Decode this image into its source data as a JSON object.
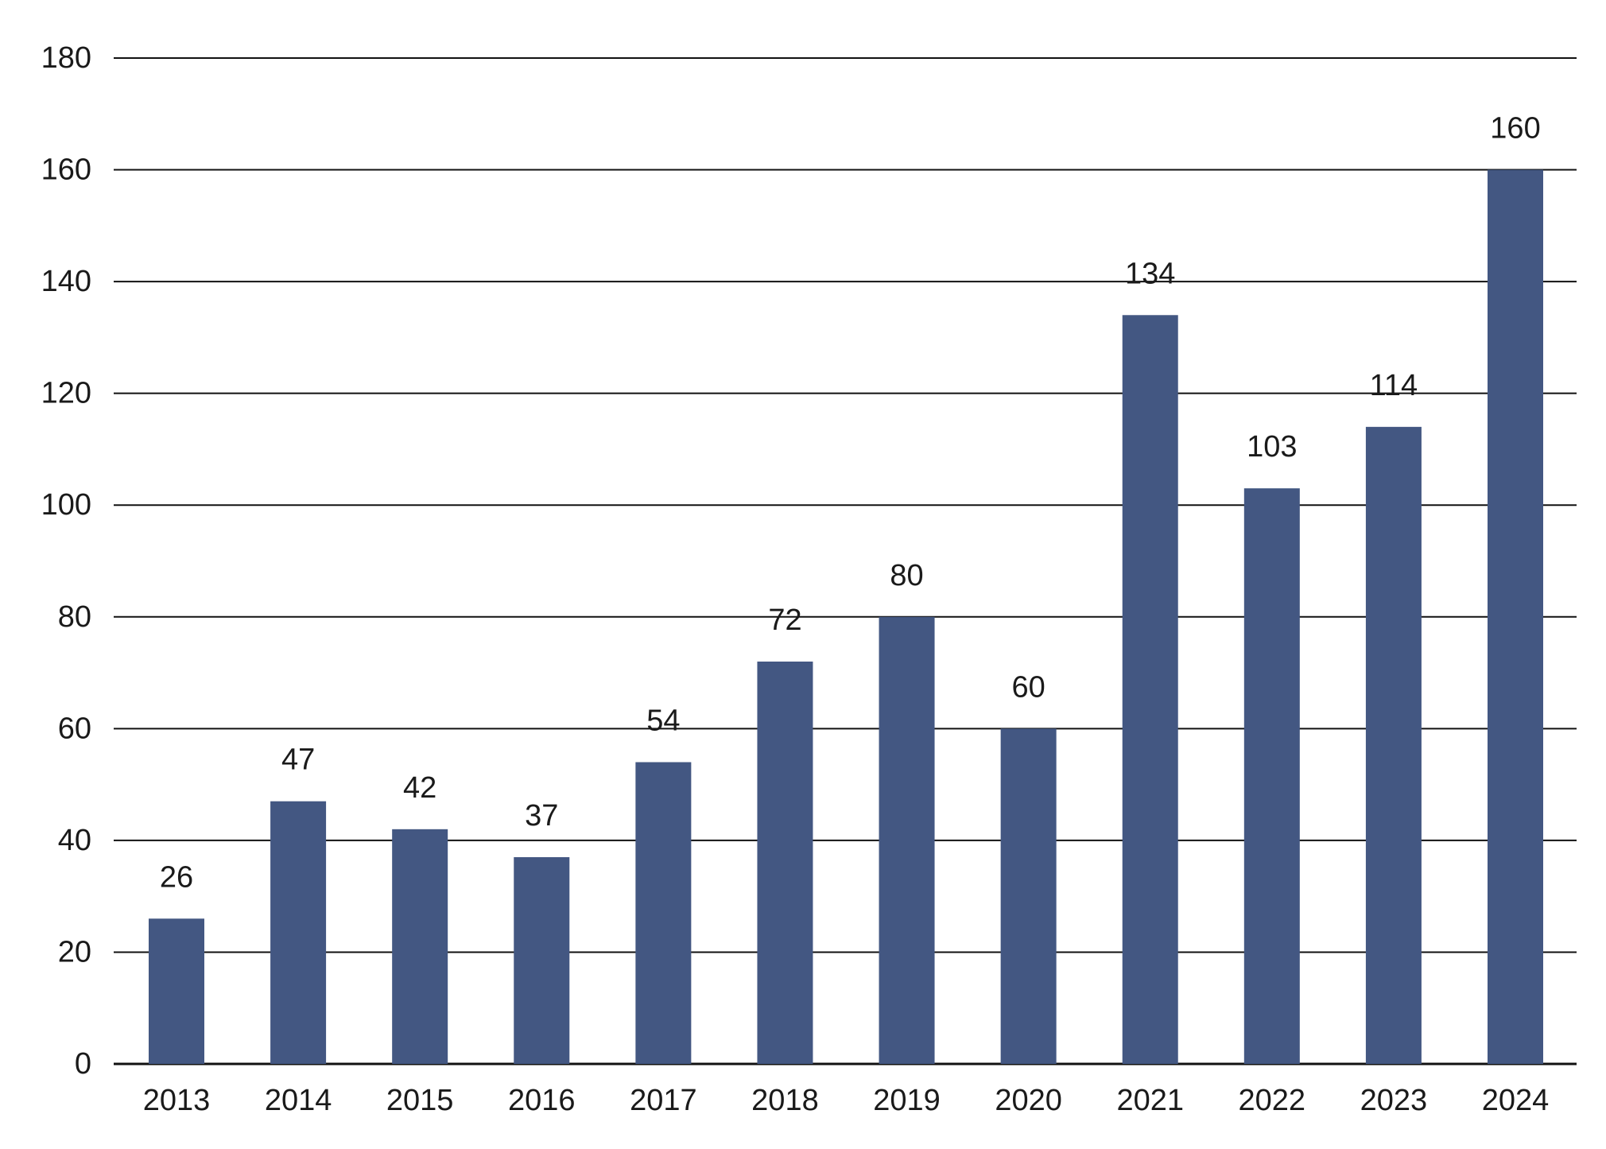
{
  "chart_data": {
    "type": "bar",
    "title": "",
    "xlabel": "",
    "ylabel": "",
    "categories": [
      "2013",
      "2014",
      "2015",
      "2016",
      "2017",
      "2018",
      "2019",
      "2020",
      "2021",
      "2022",
      "2023",
      "2024"
    ],
    "values": [
      26,
      47,
      42,
      37,
      54,
      72,
      80,
      60,
      134,
      103,
      114,
      160
    ],
    "data_labels": [
      "26",
      "47",
      "42",
      "37",
      "54",
      "72",
      "80",
      "60",
      "134",
      "103",
      "114",
      "160"
    ],
    "ylim": [
      0,
      180
    ],
    "yticks": [
      0,
      20,
      40,
      60,
      80,
      100,
      120,
      140,
      160,
      180
    ],
    "ytick_labels": [
      "0",
      "20",
      "40",
      "60",
      "80",
      "100",
      "120",
      "140",
      "160",
      "180"
    ],
    "grid": true,
    "legend": "none",
    "colors": {
      "bar": "#435782",
      "grid": "#111111",
      "text": "#1a1a1a"
    }
  }
}
